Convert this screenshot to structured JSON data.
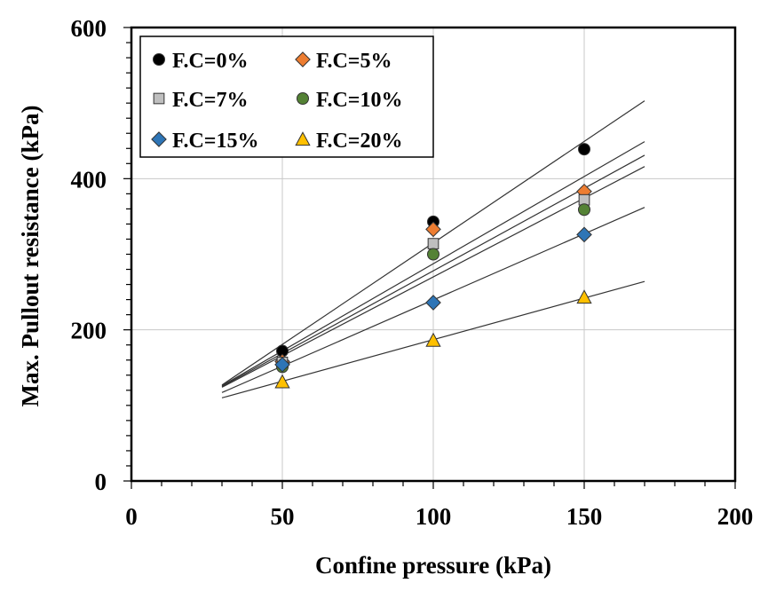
{
  "chart_data": {
    "type": "scatter",
    "xlabel": "Confine pressure (kPa)",
    "ylabel": "Max. Pullout resistance  (kPa)",
    "xlim": [
      0,
      200
    ],
    "ylim": [
      0,
      600
    ],
    "xticks": [
      0,
      50,
      100,
      150,
      200
    ],
    "yticks": [
      0,
      200,
      400,
      600
    ],
    "x_minor_step": 10,
    "y_minor_step": 20,
    "grid": true,
    "legend_position": "top-left",
    "series": [
      {
        "name": "F.C=0%",
        "marker": "circle",
        "color": "#000000",
        "x": [
          50,
          100,
          150
        ],
        "y": [
          172,
          343,
          439
        ],
        "fit": {
          "x0": 30,
          "y0": 127,
          "x1": 170,
          "y1": 503
        }
      },
      {
        "name": "F.C=5%",
        "marker": "diamond",
        "color": "#ED7D31",
        "x": [
          50,
          100,
          150
        ],
        "y": [
          158,
          333,
          383
        ],
        "fit": {
          "x0": 30,
          "y0": 126,
          "x1": 170,
          "y1": 449
        }
      },
      {
        "name": "F.C=7%",
        "marker": "square",
        "color": "#BFBFBF",
        "x": [
          50,
          100,
          150
        ],
        "y": [
          157,
          314,
          372
        ],
        "fit": {
          "x0": 30,
          "y0": 125,
          "x1": 170,
          "y1": 431
        }
      },
      {
        "name": "F.C=10%",
        "marker": "circle",
        "color": "#548235",
        "x": [
          50,
          100,
          150
        ],
        "y": [
          151,
          300,
          359
        ],
        "fit": {
          "x0": 30,
          "y0": 124,
          "x1": 170,
          "y1": 416
        }
      },
      {
        "name": "F.C=15%",
        "marker": "diamond",
        "color": "#2E75B6",
        "x": [
          50,
          100,
          150
        ],
        "y": [
          154,
          236,
          326
        ],
        "fit": {
          "x0": 30,
          "y0": 117,
          "x1": 170,
          "y1": 362
        }
      },
      {
        "name": "F.C=20%",
        "marker": "triangle",
        "color": "#FFC000",
        "x": [
          50,
          100,
          150
        ],
        "y": [
          131,
          186,
          243
        ],
        "fit": {
          "x0": 30,
          "y0": 110,
          "x1": 170,
          "y1": 264
        }
      }
    ]
  }
}
